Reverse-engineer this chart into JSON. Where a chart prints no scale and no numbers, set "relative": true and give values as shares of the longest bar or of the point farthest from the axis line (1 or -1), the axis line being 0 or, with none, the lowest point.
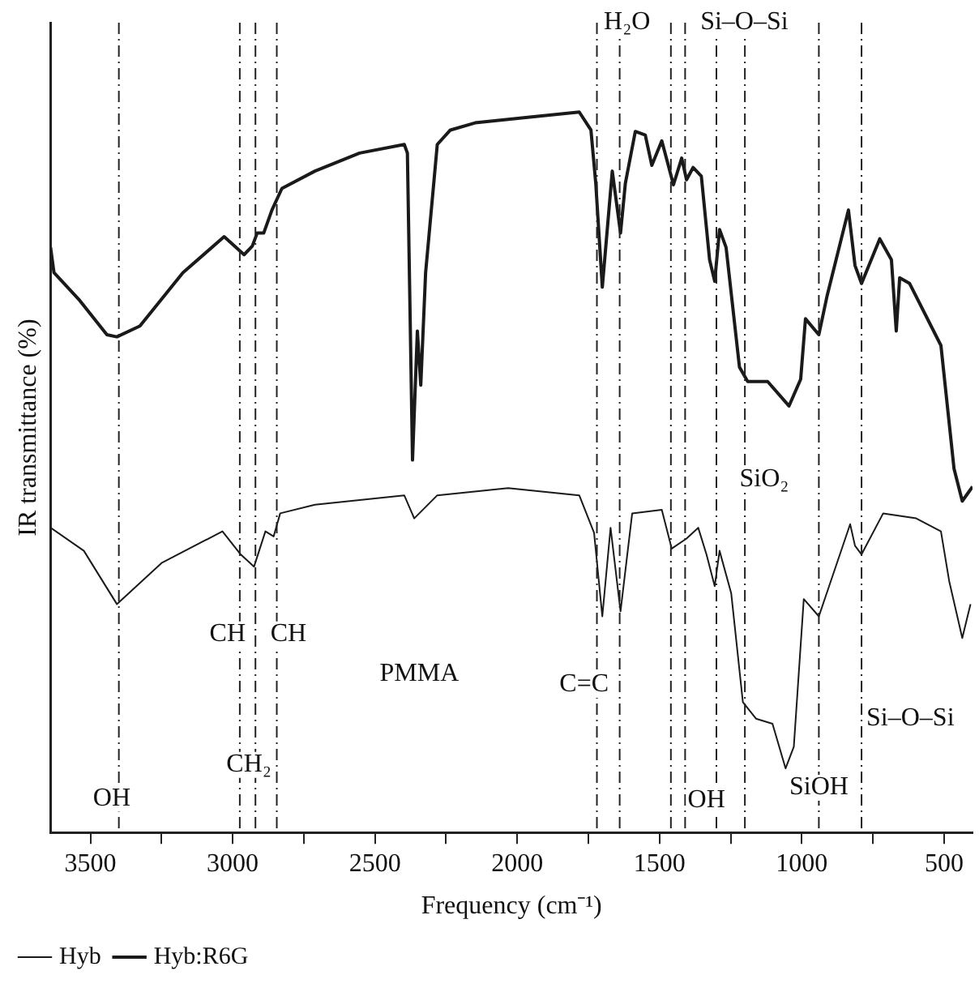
{
  "chart_data": {
    "type": "line",
    "relative": true,
    "xlabel": "Frequency (cm⁻¹)",
    "ylabel": "IR transmittance (%)",
    "xlim": [
      3640,
      400
    ],
    "xticks": [
      3500,
      {
        "value": 3250,
        "label": null
      },
      3000,
      {
        "value": 2750,
        "label": null
      },
      2500,
      {
        "value": 2250,
        "label": null
      },
      2000,
      {
        "value": 1750,
        "label": null
      },
      1500,
      {
        "value": 1250,
        "label": null
      },
      1000,
      {
        "value": 750,
        "label": null
      },
      500
    ],
    "grid": false,
    "legend": "bottom",
    "marker": "none",
    "line_style": "solid",
    "series": [
      {
        "name": "Hyb",
        "color": "#1a1a1a",
        "x": [
          3640,
          3523,
          3407,
          3250,
          3036,
          2972,
          2925,
          2885,
          2856,
          2833,
          2711,
          2397,
          2362,
          2281,
          2032,
          1782,
          1730,
          1701,
          1672,
          1637,
          1596,
          1492,
          1457,
          1405,
          1364,
          1335,
          1306,
          1289,
          1248,
          1207,
          1161,
          1103,
          1057,
          1028,
          993,
          940,
          830,
          813,
          790,
          714,
          598,
          511,
          482,
          436,
          407
        ],
        "values": [
          0.423,
          0.391,
          0.317,
          0.374,
          0.418,
          0.386,
          0.369,
          0.418,
          0.411,
          0.443,
          0.455,
          0.468,
          0.436,
          0.468,
          0.478,
          0.468,
          0.416,
          0.3,
          0.423,
          0.307,
          0.443,
          0.448,
          0.394,
          0.408,
          0.423,
          0.386,
          0.342,
          0.391,
          0.332,
          0.181,
          0.158,
          0.151,
          0.089,
          0.119,
          0.324,
          0.3,
          0.428,
          0.398,
          0.386,
          0.443,
          0.436,
          0.418,
          0.349,
          0.27,
          0.317
        ]
      },
      {
        "name": "Hyb:R6G",
        "color": "#1a1a1a",
        "x": [
          3640,
          3628,
          3541,
          3442,
          3407,
          3326,
          3175,
          3030,
          2960,
          2931,
          2914,
          2891,
          2862,
          2827,
          2711,
          2554,
          2397,
          2386,
          2368,
          2351,
          2339,
          2322,
          2281,
          2235,
          2148,
          1956,
          1782,
          1741,
          1724,
          1701,
          1666,
          1637,
          1620,
          1585,
          1550,
          1527,
          1492,
          1451,
          1422,
          1405,
          1382,
          1353,
          1324,
          1306,
          1289,
          1266,
          1219,
          1190,
          1120,
          1045,
          1004,
          987,
          940,
          911,
          836,
          813,
          790,
          726,
          685,
          668,
          656,
          621,
          511,
          465,
          436,
          400
        ],
        "values": [
          0.812,
          0.777,
          0.74,
          0.691,
          0.688,
          0.703,
          0.777,
          0.827,
          0.802,
          0.814,
          0.832,
          0.832,
          0.864,
          0.894,
          0.918,
          0.943,
          0.955,
          0.943,
          0.517,
          0.696,
          0.621,
          0.777,
          0.955,
          0.975,
          0.985,
          0.993,
          1,
          0.975,
          0.901,
          0.757,
          0.918,
          0.832,
          0.901,
          0.973,
          0.968,
          0.926,
          0.96,
          0.899,
          0.936,
          0.906,
          0.923,
          0.911,
          0.795,
          0.765,
          0.837,
          0.812,
          0.646,
          0.626,
          0.626,
          0.592,
          0.629,
          0.713,
          0.691,
          0.745,
          0.864,
          0.787,
          0.762,
          0.824,
          0.795,
          0.696,
          0.77,
          0.762,
          0.676,
          0.505,
          0.46,
          0.48
        ]
      }
    ],
    "ref_lines": [
      {
        "axis": "x",
        "value": 3400,
        "line_style": "dashed"
      },
      {
        "axis": "x",
        "value": 2975,
        "line_style": "dashed"
      },
      {
        "axis": "x",
        "value": 2920,
        "line_style": "dashed"
      },
      {
        "axis": "x",
        "value": 2845,
        "line_style": "dashed"
      },
      {
        "axis": "x",
        "value": 1720,
        "line_style": "dashed"
      },
      {
        "axis": "x",
        "value": 1640,
        "line_style": "dashed"
      },
      {
        "axis": "x",
        "value": 1460,
        "line_style": "dashed"
      },
      {
        "axis": "x",
        "value": 1410,
        "line_style": "dashed"
      },
      {
        "axis": "x",
        "value": 1300,
        "line_style": "dashed"
      },
      {
        "axis": "x",
        "value": 1200,
        "line_style": "dashed"
      },
      {
        "axis": "x",
        "value": 940,
        "line_style": "dashed"
      },
      {
        "axis": "x",
        "value": 790,
        "line_style": "dashed"
      }
    ],
    "annotations": [
      {
        "text": "OH",
        "x": 3425,
        "y": 0.047
      },
      {
        "text": "CH",
        "x": 3018,
        "y": 0.275
      },
      {
        "text": "CH",
        "x": 2804,
        "y": 0.275
      },
      {
        "text": "CH₂",
        "x": 2943,
        "y": 0.094
      },
      "PMMA",
      {
        "text": "C=C",
        "x": 1765,
        "y": 0.205
      },
      {
        "text": "OH",
        "x": 1335,
        "y": 0.045
      },
      {
        "text": "SiOH",
        "x": 940,
        "y": 0.062
      },
      {
        "text": "Si–O–Si",
        "x": 790,
        "y": 0.158
      },
      {
        "text": "SiO₂",
        "x": 1132,
        "y": 0.49
      },
      {
        "text": "H₂O",
        "x": 1614,
        "y": 1.124
      },
      {
        "text": "Si–O–Si",
        "x": 1202,
        "y": 1.124
      }
    ]
  }
}
